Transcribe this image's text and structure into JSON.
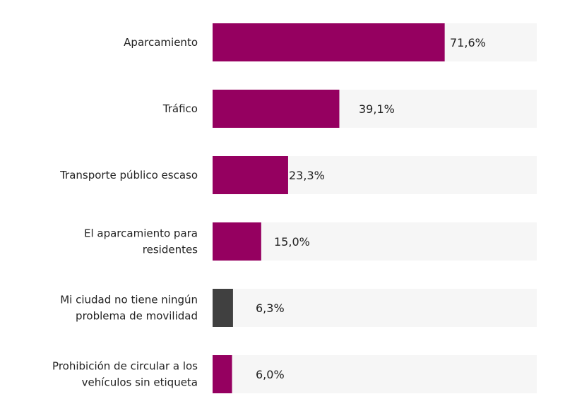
{
  "chart_data": {
    "type": "bar",
    "orientation": "horizontal",
    "categories": [
      [
        "Aparcamiento"
      ],
      [
        "Tráfico"
      ],
      [
        "Transporte público escaso"
      ],
      [
        "El aparcamiento para",
        "residentes"
      ],
      [
        "Mi ciudad no tiene ningún",
        "problema de movilidad"
      ],
      [
        "Prohibición de circular a los",
        "vehículos sin etiqueta"
      ]
    ],
    "values": [
      71.6,
      39.1,
      23.3,
      15.0,
      6.3,
      6.0
    ],
    "value_labels": [
      "71,6%",
      "39,1%",
      "23,3%",
      "15,0%",
      "6,3%",
      "6,0%"
    ],
    "colors": [
      "#950060",
      "#950060",
      "#950060",
      "#950060",
      "#404040",
      "#950060"
    ],
    "track_color": "#f6f6f6",
    "xlim": [
      0,
      100
    ],
    "title": "",
    "xlabel": "",
    "ylabel": "",
    "grid": false,
    "legend": "none"
  }
}
